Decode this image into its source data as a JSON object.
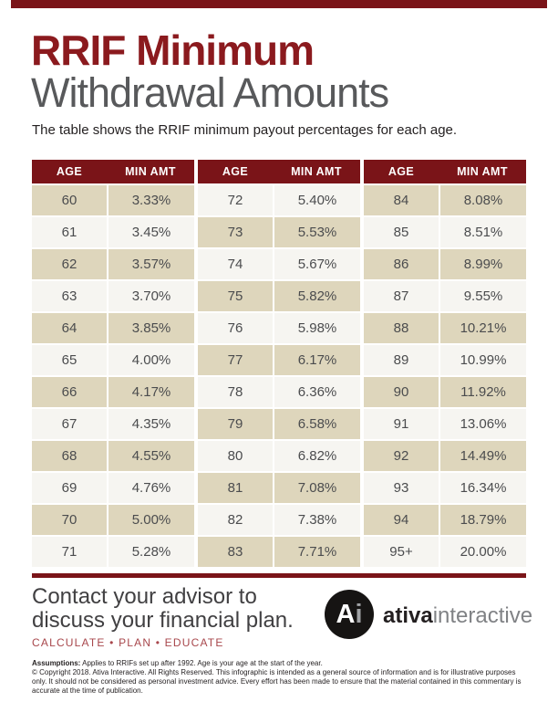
{
  "header": {
    "title_line1": "RRIF Minimum",
    "title_line2": "Withdrawal Amounts",
    "description": "The table shows the RRIF minimum payout percentages for each age."
  },
  "table": {
    "column_headers": [
      "AGE",
      "MIN AMT"
    ],
    "groups": [
      {
        "rows": [
          [
            "60",
            "3.33%"
          ],
          [
            "61",
            "3.45%"
          ],
          [
            "62",
            "3.57%"
          ],
          [
            "63",
            "3.70%"
          ],
          [
            "64",
            "3.85%"
          ],
          [
            "65",
            "4.00%"
          ],
          [
            "66",
            "4.17%"
          ],
          [
            "67",
            "4.35%"
          ],
          [
            "68",
            "4.55%"
          ],
          [
            "69",
            "4.76%"
          ],
          [
            "70",
            "5.00%"
          ],
          [
            "71",
            "5.28%"
          ]
        ]
      },
      {
        "rows": [
          [
            "72",
            "5.40%"
          ],
          [
            "73",
            "5.53%"
          ],
          [
            "74",
            "5.67%"
          ],
          [
            "75",
            "5.82%"
          ],
          [
            "76",
            "5.98%"
          ],
          [
            "77",
            "6.17%"
          ],
          [
            "78",
            "6.36%"
          ],
          [
            "79",
            "6.58%"
          ],
          [
            "80",
            "6.82%"
          ],
          [
            "81",
            "7.08%"
          ],
          [
            "82",
            "7.38%"
          ],
          [
            "83",
            "7.71%"
          ]
        ]
      },
      {
        "rows": [
          [
            "84",
            "8.08%"
          ],
          [
            "85",
            "8.51%"
          ],
          [
            "86",
            "8.99%"
          ],
          [
            "87",
            "9.55%"
          ],
          [
            "88",
            "10.21%"
          ],
          [
            "89",
            "10.99%"
          ],
          [
            "90",
            "11.92%"
          ],
          [
            "91",
            "13.06%"
          ],
          [
            "92",
            "14.49%"
          ],
          [
            "93",
            "16.34%"
          ],
          [
            "94",
            "18.79%"
          ],
          [
            "95+",
            "20.00%"
          ]
        ]
      }
    ]
  },
  "footer": {
    "cta_line1": "Contact your advisor to",
    "cta_line2": "discuss your financial plan.",
    "tagline": "CALCULATE • PLAN • EDUCATE",
    "logo_monogram_a": "A",
    "logo_monogram_i": "i",
    "brand_bold": "ativa",
    "brand_light": "interactive"
  },
  "fine_print": {
    "assumptions_label": "Assumptions:",
    "assumptions_text": " Applies to RRIFs set up after 1992. Age is your age at the start of the year.",
    "copyright_text": "© Copyright 2018. Ativa Interactive. All Rights Reserved. This infographic is intended as a general source of information and is for illustrative purposes only. It should not be considered as personal investment advice. Every effort has been made to ensure that the material contained in this commentary is accurate at the time of publication."
  },
  "colors": {
    "maroon": "#7a1418",
    "title_red": "#8b1a1e",
    "title_gray": "#58595b",
    "tan_cell": "#ded6bc",
    "light_cell": "#f6f5f1",
    "cell_text": "#4b4c4e",
    "tagline_red": "#a8474c",
    "brand_gray": "#808285",
    "ink": "#231f20"
  }
}
